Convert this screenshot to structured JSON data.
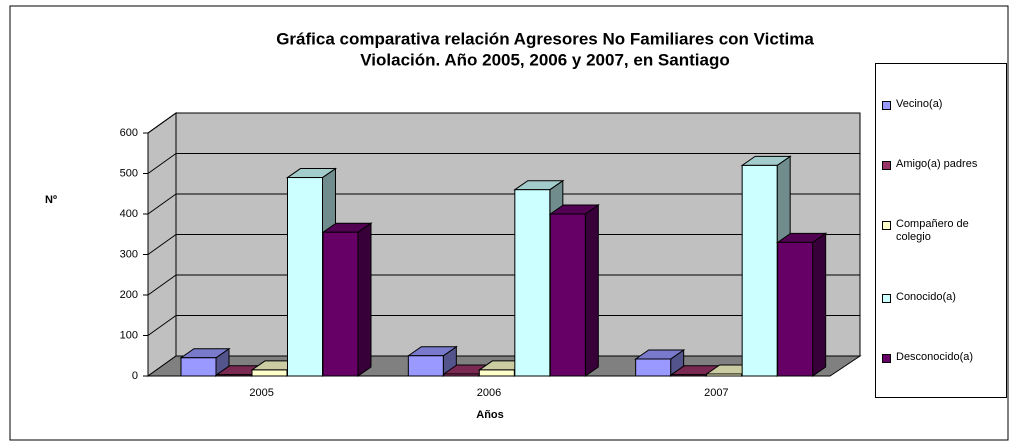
{
  "chart_data": {
    "type": "bar3d",
    "title": "Gráfica comparativa relación Agresores No Familiares con Victima",
    "subtitle": "Violación. Año 2005, 2006 y 2007, en Santiago",
    "x_label": "Años",
    "y_label": "Nº",
    "categories": [
      "2005",
      "2006",
      "2007"
    ],
    "series": [
      {
        "name": "Vecino(a)",
        "color": "#9999ff",
        "values": [
          45,
          50,
          42
        ]
      },
      {
        "name": "Amigo(a) padres",
        "color": "#993366",
        "values": [
          3,
          5,
          3
        ]
      },
      {
        "name": "Compañero de colegio",
        "color": "#ffffcc",
        "values": [
          15,
          15,
          5
        ]
      },
      {
        "name": "Conocido(a)",
        "color": "#ccffff",
        "values": [
          490,
          460,
          520
        ]
      },
      {
        "name": "Desconocido(a)",
        "color": "#660066",
        "values": [
          355,
          400,
          330
        ]
      }
    ],
    "ylim": [
      0,
      600
    ],
    "yticks": [
      0,
      100,
      200,
      300,
      400,
      500,
      600
    ],
    "grid": true,
    "legend": "right"
  }
}
